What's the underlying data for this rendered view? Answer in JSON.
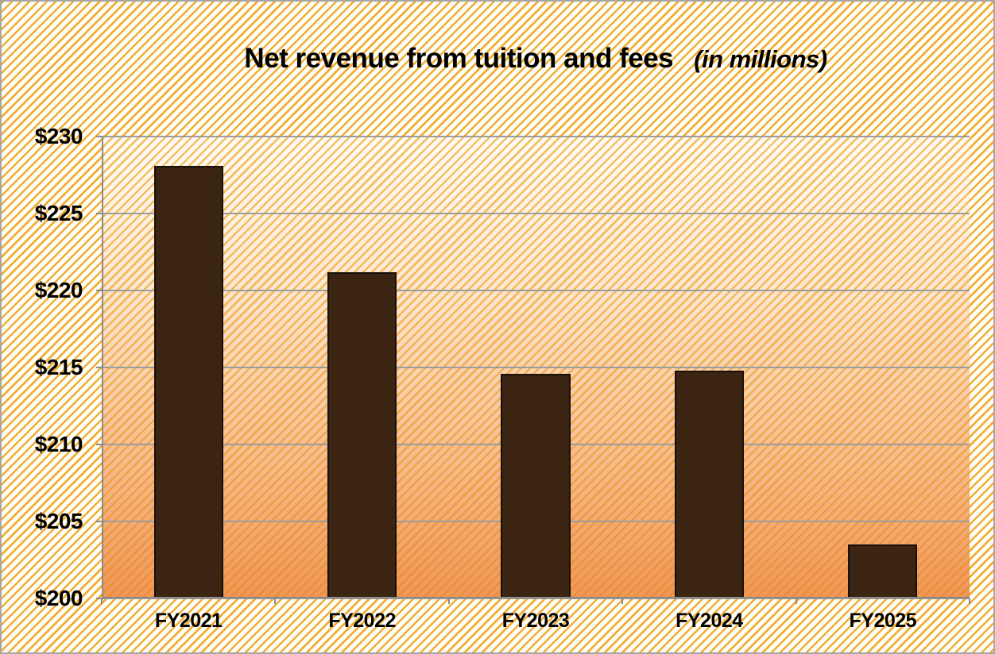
{
  "chart_data": {
    "type": "bar",
    "title": "Net revenue from tuition and fees",
    "subtitle": "(in millions)",
    "categories": [
      "FY2021",
      "FY2022",
      "FY2023",
      "FY2024",
      "FY2025"
    ],
    "values": [
      228.1,
      221.2,
      214.6,
      214.8,
      203.5
    ],
    "xlabel": "",
    "ylabel": "",
    "ylim": [
      200,
      230
    ],
    "y_ticks": [
      200,
      205,
      210,
      215,
      220,
      225,
      230
    ],
    "y_tick_labels": [
      "$200",
      "$205",
      "$210",
      "$215",
      "$220",
      "$225",
      "$230"
    ],
    "grid": true,
    "legend": false,
    "layout": {
      "bar_gap_fraction": 0.4,
      "background_pattern": "diagonal-gold-stripes",
      "plot_fill": "vertical gradient cream to orange"
    },
    "colors": {
      "bar_fill": "#3b2512",
      "bar_border": "#17100a",
      "gridline": "#9c9c9c",
      "axis": "#8a8a8a",
      "stripe": "#f0aa2d",
      "background": "#fffef8",
      "plot_gradient_top": "#fdf4ee",
      "plot_gradient_bottom": "#ec8636",
      "text": "#000000",
      "frame": "#a6a6a6"
    }
  }
}
